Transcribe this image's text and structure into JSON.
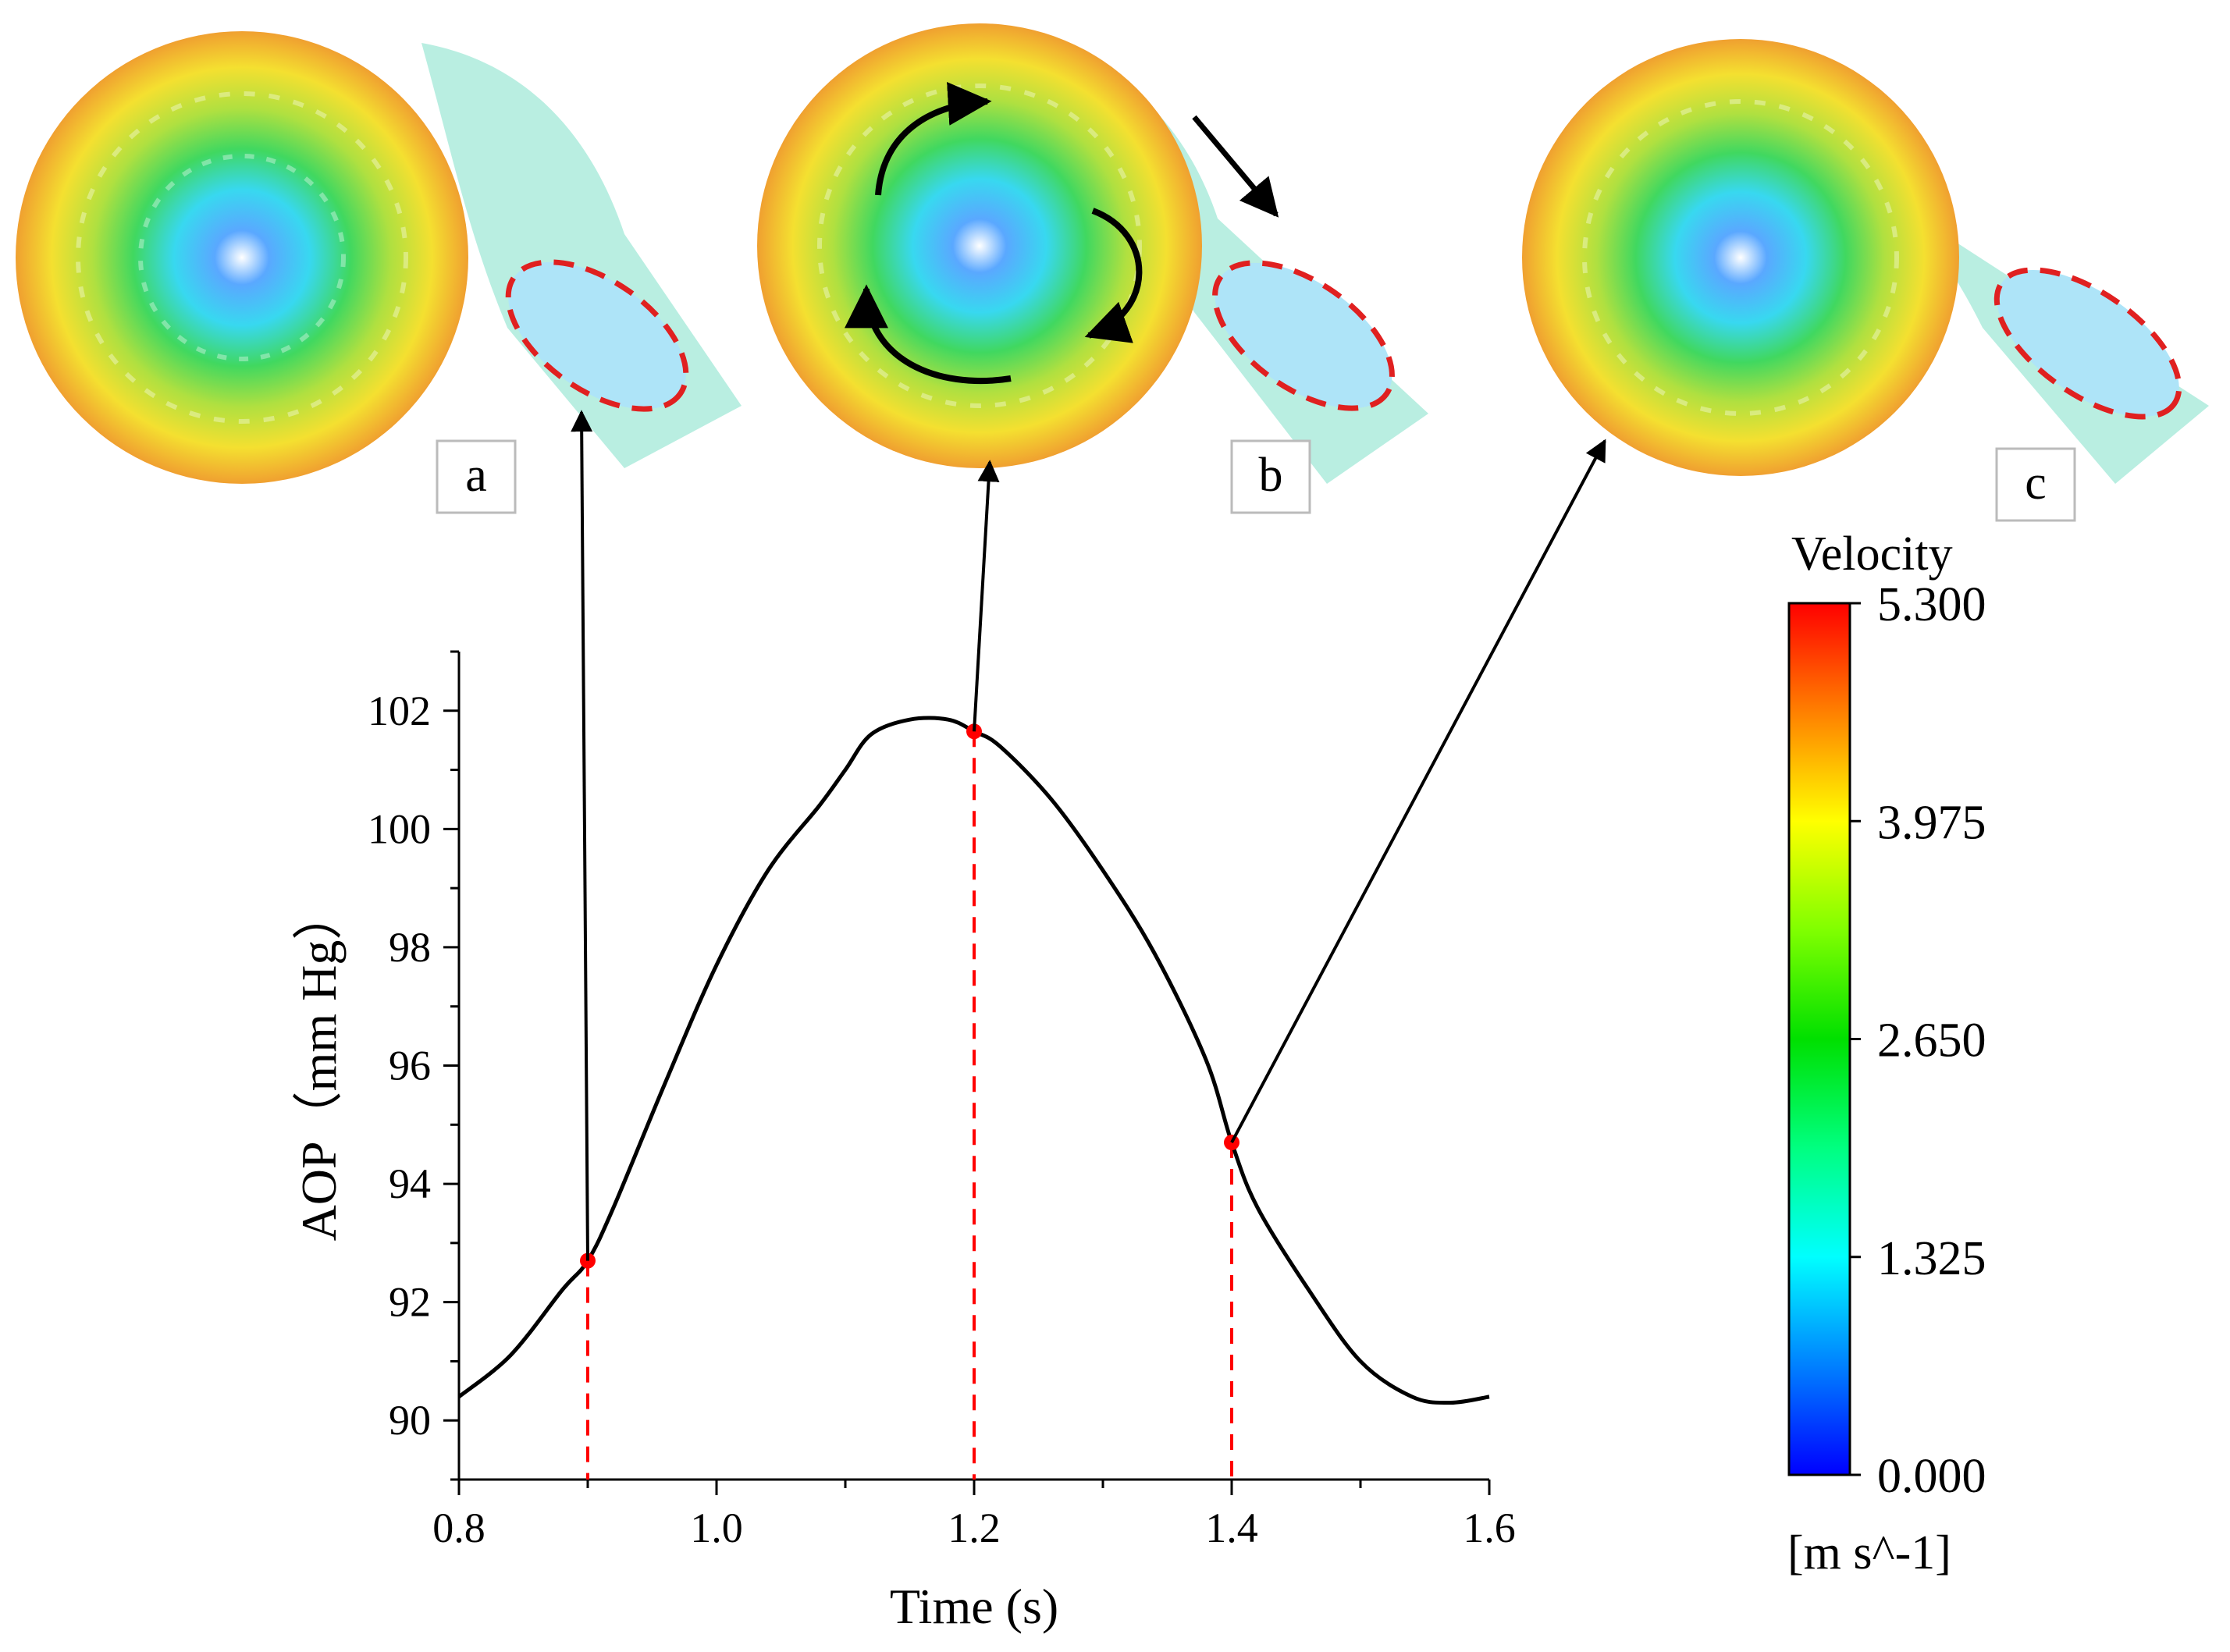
{
  "chart_data": {
    "type": "line",
    "title": "",
    "xlabel": "Time (s)",
    "ylabel": "AOP（mm Hg）",
    "xlim": [
      0.8,
      1.6
    ],
    "ylim": [
      89,
      103
    ],
    "x_ticks": [
      "0.8",
      "1.0",
      "1.2",
      "1.4",
      "1.6"
    ],
    "x_tick_values": [
      0.8,
      1.0,
      1.2,
      1.4,
      1.6
    ],
    "y_ticks": [
      "90",
      "92",
      "94",
      "96",
      "98",
      "100",
      "102"
    ],
    "y_tick_values": [
      90,
      92,
      94,
      96,
      98,
      100,
      102
    ],
    "series": [
      {
        "name": "AOP",
        "color": "#000000",
        "x": [
          0.8,
          0.84,
          0.88,
          0.9,
          0.92,
          0.96,
          1.0,
          1.04,
          1.08,
          1.1,
          1.12,
          1.15,
          1.18,
          1.2,
          1.22,
          1.26,
          1.3,
          1.34,
          1.38,
          1.4,
          1.42,
          1.46,
          1.5,
          1.54,
          1.57,
          1.6
        ],
        "y": [
          90.4,
          91.1,
          92.2,
          92.7,
          93.6,
          95.7,
          97.7,
          99.3,
          100.4,
          101.0,
          101.6,
          101.85,
          101.85,
          101.65,
          101.4,
          100.5,
          99.3,
          97.9,
          96.1,
          94.7,
          93.6,
          92.2,
          91.0,
          90.4,
          90.3,
          90.4
        ]
      }
    ],
    "markers": [
      {
        "label": "a",
        "x": 0.9,
        "y": 92.7,
        "color": "#ff0000"
      },
      {
        "label": "b",
        "x": 1.2,
        "y": 101.65,
        "color": "#ff0000"
      },
      {
        "label": "c",
        "x": 1.4,
        "y": 94.7,
        "color": "#ff0000"
      }
    ],
    "grid": false,
    "legend": "none"
  },
  "panels": [
    {
      "label": "a"
    },
    {
      "label": "b"
    },
    {
      "label": "c"
    }
  ],
  "colorbar": {
    "title": "Velocity",
    "unit": "[m s^-1]",
    "ticks": [
      "5.300",
      "3.975",
      "2.650",
      "1.325",
      "0.000"
    ],
    "tick_values": [
      5.3,
      3.975,
      2.65,
      1.325,
      0.0
    ],
    "colors": [
      "#ff0000",
      "#ff8000",
      "#ffff00",
      "#80ff00",
      "#00e000",
      "#00ff80",
      "#00ffff",
      "#0080ff",
      "#0000ff"
    ]
  },
  "colors": {
    "curve": "#000000",
    "marker": "#ff0000",
    "dashed": "#ff0000",
    "outlet_ellipse": "#e02020"
  }
}
